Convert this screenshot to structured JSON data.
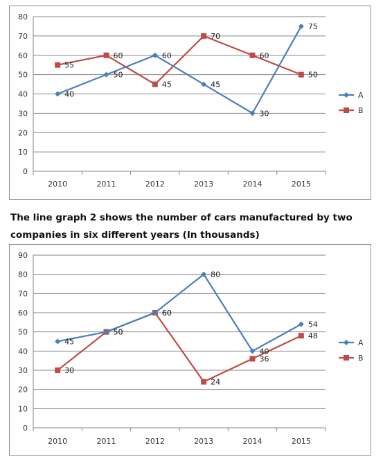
{
  "caption": "The line graph 2 shows the number of cars manufactured by two companies in six different years (In thousands)",
  "colors": {
    "A": "#4a7ebb",
    "B": "#be4b48",
    "grid": "#868686",
    "axis": "#868686"
  },
  "chart_data": [
    {
      "type": "line",
      "categories": [
        "2010",
        "2011",
        "2012",
        "2013",
        "2014",
        "2015"
      ],
      "series": [
        {
          "name": "A",
          "values": [
            40,
            50,
            60,
            45,
            30,
            75
          ],
          "marker": "diamond"
        },
        {
          "name": "B",
          "values": [
            55,
            60,
            45,
            70,
            60,
            50
          ],
          "marker": "square"
        }
      ],
      "ylim": [
        0,
        80
      ],
      "yticks": [
        0,
        10,
        20,
        30,
        40,
        50,
        60,
        70,
        80
      ],
      "grid": true,
      "legend": "right",
      "data_labels": true
    },
    {
      "type": "line",
      "categories": [
        "2010",
        "2011",
        "2012",
        "2013",
        "2014",
        "2015"
      ],
      "series": [
        {
          "name": "A",
          "values": [
            45,
            50,
            60,
            80,
            40,
            54
          ],
          "marker": "diamond"
        },
        {
          "name": "B",
          "values": [
            30,
            50,
            60,
            24,
            36,
            48
          ],
          "marker": "square"
        }
      ],
      "ylim": [
        0,
        90
      ],
      "yticks": [
        0,
        10,
        20,
        30,
        40,
        50,
        60,
        70,
        80,
        90
      ],
      "grid": true,
      "legend": "right",
      "data_labels": true
    }
  ]
}
